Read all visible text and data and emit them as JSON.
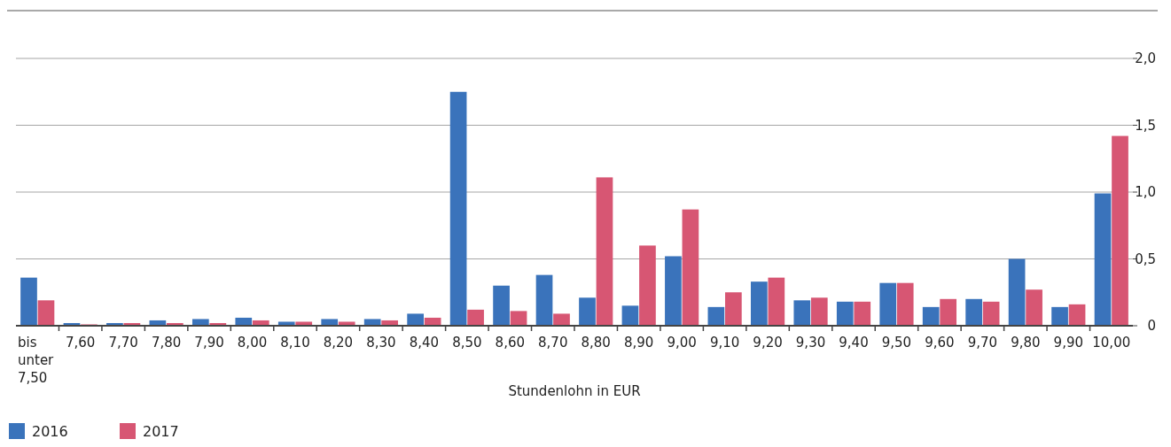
{
  "chart_data": {
    "type": "bar",
    "xlabel": "Stundenlohn in EUR",
    "categories": [
      "bis unter 7,50",
      "7,60",
      "7,70",
      "7,80",
      "7,90",
      "8,00",
      "8,10",
      "8,20",
      "8,30",
      "8,40",
      "8,50",
      "8,60",
      "8,70",
      "8,80",
      "8,90",
      "9,00",
      "9,10",
      "9,20",
      "9,30",
      "9,40",
      "9,50",
      "9,60",
      "9,70",
      "9,80",
      "9,90",
      "10,00"
    ],
    "series": [
      {
        "name": "2016",
        "color": "#3a73bb",
        "values": [
          0.36,
          0.02,
          0.02,
          0.04,
          0.05,
          0.06,
          0.03,
          0.05,
          0.05,
          0.09,
          1.75,
          0.3,
          0.38,
          0.21,
          0.15,
          0.52,
          0.14,
          0.33,
          0.19,
          0.18,
          0.32,
          0.14,
          0.2,
          0.5,
          0.14,
          0.99
        ]
      },
      {
        "name": "2017",
        "color": "#d75673",
        "values": [
          0.19,
          0.01,
          0.02,
          0.02,
          0.02,
          0.04,
          0.03,
          0.03,
          0.04,
          0.06,
          0.12,
          0.11,
          0.09,
          1.11,
          0.6,
          0.87,
          0.25,
          0.36,
          0.21,
          0.18,
          0.32,
          0.2,
          0.18,
          0.27,
          0.16,
          1.42
        ]
      }
    ],
    "ylim": [
      0,
      2
    ],
    "yticks": [
      {
        "value": 0,
        "label": "0"
      },
      {
        "value": 0.5,
        "label": "0,5"
      },
      {
        "value": 1,
        "label": "1,0"
      },
      {
        "value": 1.5,
        "label": "1,5"
      },
      {
        "value": 2,
        "label": "2,0"
      }
    ],
    "grid": "y",
    "legend": "bottom left"
  }
}
